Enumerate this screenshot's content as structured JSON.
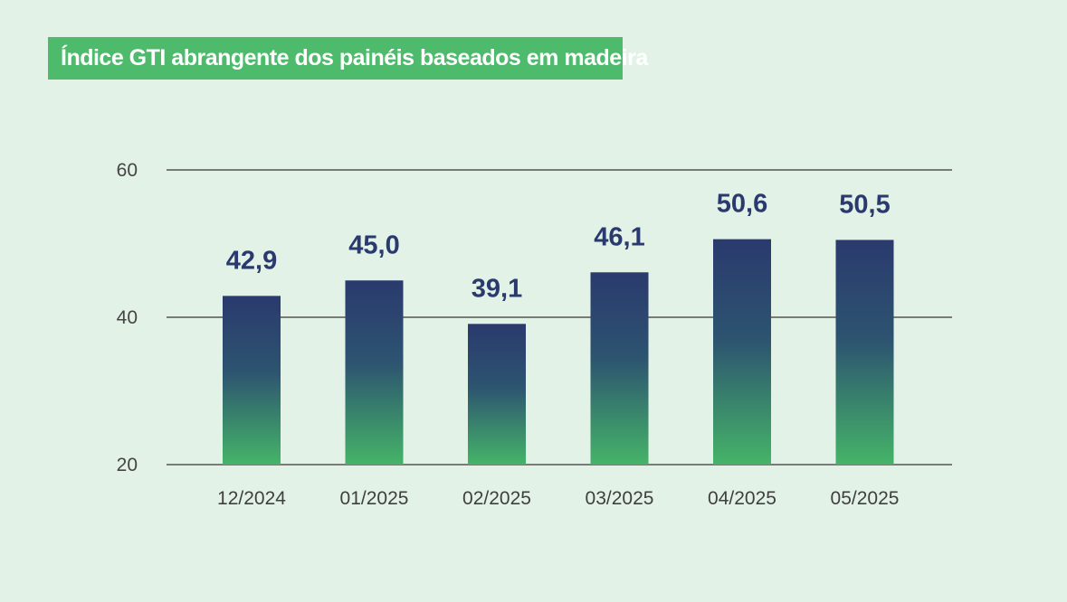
{
  "chart_data": {
    "type": "bar",
    "title": "Índice GTI abrangente dos painéis baseados em madeira",
    "categories": [
      "12/2024",
      "01/2025",
      "02/2025",
      "03/2025",
      "04/2025",
      "05/2025"
    ],
    "values": [
      42.9,
      45.0,
      39.1,
      46.1,
      50.6,
      50.5
    ],
    "value_labels": [
      "42,9",
      "45,0",
      "39,1",
      "46,1",
      "50,6",
      "50,5"
    ],
    "yticks": [
      20,
      40,
      60
    ],
    "ytick_labels": [
      "20",
      "40",
      "60"
    ],
    "xlabel": "",
    "ylabel": "",
    "grid": true,
    "legend": "none",
    "colors": {
      "background": "#e3f2e6",
      "title_banner": "#4dbb6b",
      "bar_top": "#2a3a6e",
      "bar_bottom": "#45b468",
      "value_label": "#2a3a6e",
      "gridline": "#555555"
    }
  }
}
